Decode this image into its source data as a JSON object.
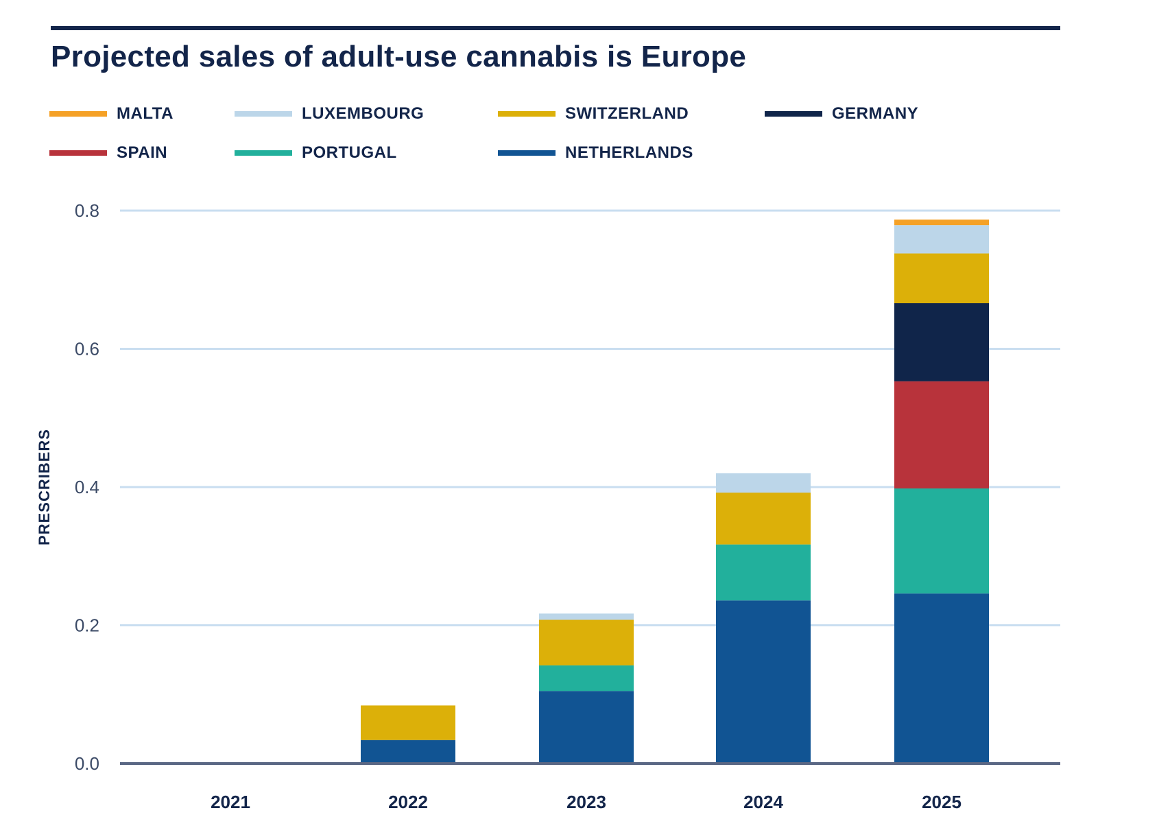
{
  "chart_data": {
    "type": "bar",
    "stacked": true,
    "title": "Projected sales of adult-use cannabis is Europe",
    "xlabel": "",
    "ylabel": "PRESCRIBERS",
    "ylim": [
      0,
      0.8
    ],
    "yticks": [
      "0.0",
      "0.2",
      "0.4",
      "0.6",
      "0.8"
    ],
    "grid": true,
    "legend": "top-left",
    "categories": [
      "2021",
      "2022",
      "2023",
      "2024",
      "2025"
    ],
    "series": [
      {
        "name": "NETHERLANDS",
        "color": "#115493",
        "values": [
          0,
          0.034,
          0.105,
          0.236,
          0.246
        ]
      },
      {
        "name": "PORTUGAL",
        "color": "#22b09c",
        "values": [
          0,
          0,
          0.037,
          0.081,
          0.152
        ]
      },
      {
        "name": "SPAIN",
        "color": "#b8333b",
        "values": [
          0,
          0,
          0,
          0,
          0.155
        ]
      },
      {
        "name": "GERMANY",
        "color": "#10254a",
        "values": [
          0,
          0,
          0,
          0,
          0.113
        ]
      },
      {
        "name": "SWITZERLAND",
        "color": "#dcb009",
        "values": [
          0,
          0.05,
          0.066,
          0.075,
          0.072
        ]
      },
      {
        "name": "LUXEMBOURG",
        "color": "#bcd6e9",
        "values": [
          0,
          0,
          0.009,
          0.028,
          0.041
        ]
      },
      {
        "name": "MALTA",
        "color": "#f5a126",
        "values": [
          0,
          0,
          0,
          0,
          0.008
        ]
      }
    ]
  },
  "legend_order": [
    "MALTA",
    "LUXEMBOURG",
    "SWITZERLAND",
    "GERMANY",
    "SPAIN",
    "PORTUGAL",
    "NETHERLANDS"
  ]
}
